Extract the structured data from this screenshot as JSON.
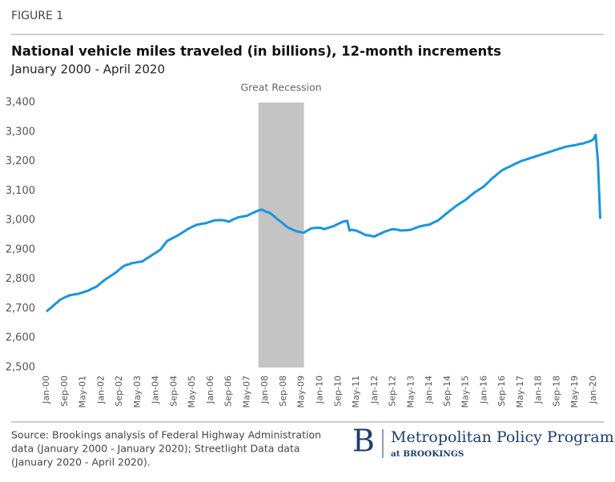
{
  "figure_label": "FIGURE 1",
  "source": [
    "Source: Brookings analysis of Federal Highway Administration",
    "data (January 2000 - January 2020); Streetlight Data data",
    "(January 2020 - April 2020)."
  ],
  "logo": {
    "letter": "B",
    "name": "Metropolitan Policy Program",
    "sub": "at BROOKINGS"
  },
  "chart_data": {
    "type": "line",
    "title": "National vehicle miles traveled (in billions), 12-month increments",
    "subtitle": "January 2000 - April 2020",
    "color": "#1b95dc",
    "annotations": [
      {
        "text": "Great Recession",
        "x_start": 93,
        "x_end": 113,
        "color": "#c4c4c4"
      }
    ],
    "ylim": [
      2500,
      3400
    ],
    "yticks": [
      {
        "value": 2500,
        "label": "2,500"
      },
      {
        "value": 2600,
        "label": "2,600"
      },
      {
        "value": 2700,
        "label": "2,700"
      },
      {
        "value": 2800,
        "label": "2,800"
      },
      {
        "value": 2900,
        "label": "2,900"
      },
      {
        "value": 3000,
        "label": "3,000"
      },
      {
        "value": 3100,
        "label": "3,100"
      },
      {
        "value": 3200,
        "label": "3,200"
      },
      {
        "value": 3300,
        "label": "3,300"
      },
      {
        "value": 3400,
        "label": "3,400"
      }
    ],
    "categories": [
      "Jan-00",
      null,
      null,
      null,
      null,
      null,
      null,
      null,
      "Sep-00",
      null,
      null,
      null,
      null,
      null,
      null,
      null,
      "May-01",
      null,
      null,
      null,
      null,
      null,
      null,
      null,
      "Jan-02",
      null,
      null,
      null,
      null,
      null,
      null,
      null,
      "Sep-02",
      null,
      null,
      null,
      null,
      null,
      null,
      null,
      "May-03",
      null,
      null,
      null,
      null,
      null,
      null,
      null,
      "Jan-04",
      null,
      null,
      null,
      null,
      null,
      null,
      null,
      "Sep-04",
      null,
      null,
      null,
      null,
      null,
      null,
      null,
      "May-05",
      null,
      null,
      null,
      null,
      null,
      null,
      null,
      "Jan-06",
      null,
      null,
      null,
      null,
      null,
      null,
      null,
      "Sep-06",
      null,
      null,
      null,
      null,
      null,
      null,
      null,
      "May-07",
      null,
      null,
      null,
      null,
      null,
      null,
      null,
      "Jan-08",
      null,
      null,
      null,
      null,
      null,
      null,
      null,
      "Sep-08",
      null,
      null,
      null,
      null,
      null,
      null,
      null,
      "May-09",
      null,
      null,
      null,
      null,
      null,
      null,
      null,
      "Jan-10",
      null,
      null,
      null,
      null,
      null,
      null,
      null,
      "Sep-10",
      null,
      null,
      null,
      null,
      null,
      null,
      null,
      "May-11",
      null,
      null,
      null,
      null,
      null,
      null,
      null,
      "Jan-12",
      null,
      null,
      null,
      null,
      null,
      null,
      null,
      "Sep-12",
      null,
      null,
      null,
      null,
      null,
      null,
      null,
      "May-13",
      null,
      null,
      null,
      null,
      null,
      null,
      null,
      "Jan-14",
      null,
      null,
      null,
      null,
      null,
      null,
      null,
      "Sep-14",
      null,
      null,
      null,
      null,
      null,
      null,
      null,
      "May-15",
      null,
      null,
      null,
      null,
      null,
      null,
      null,
      "Jan-16",
      null,
      null,
      null,
      null,
      null,
      null,
      null,
      "Sep-16",
      null,
      null,
      null,
      null,
      null,
      null,
      null,
      "May-17",
      null,
      null,
      null,
      null,
      null,
      null,
      null,
      "Jan-18",
      null,
      null,
      null,
      null,
      null,
      null,
      null,
      "Sep-18",
      null,
      null,
      null,
      null,
      null,
      null,
      null,
      "May-19",
      null,
      null,
      null,
      null,
      null,
      null,
      null,
      "Jan-20",
      null,
      null,
      null
    ],
    "values": [
      2690,
      2697,
      2703,
      2710,
      2717,
      2723,
      2730,
      2734,
      2738,
      2741,
      2745,
      2746,
      2748,
      2749,
      2750,
      2753,
      2755,
      2758,
      2760,
      2764,
      2768,
      2771,
      2775,
      2781,
      2788,
      2794,
      2800,
      2805,
      2810,
      2815,
      2820,
      2826,
      2833,
      2839,
      2845,
      2848,
      2850,
      2853,
      2855,
      2856,
      2858,
      2859,
      2860,
      2865,
      2870,
      2875,
      2880,
      2885,
      2890,
      2895,
      2900,
      2910,
      2920,
      2930,
      2934,
      2938,
      2942,
      2946,
      2950,
      2955,
      2960,
      2965,
      2970,
      2974,
      2978,
      2981,
      2985,
      2986,
      2988,
      2989,
      2990,
      2993,
      2995,
      2998,
      3000,
      3000,
      3001,
      3000,
      3000,
      2997,
      2995,
      2999,
      3003,
      3006,
      3010,
      3011,
      3013,
      3014,
      3015,
      3019,
      3023,
      3026,
      3030,
      3033,
      3036,
      3035,
      3030,
      3028,
      3025,
      3019,
      3013,
      3006,
      3000,
      2994,
      2988,
      2981,
      2975,
      2972,
      2968,
      2965,
      2962,
      2961,
      2959,
      2958,
      2963,
      2967,
      2972,
      2973,
      2974,
      2974,
      2975,
      2972,
      2970,
      2973,
      2975,
      2978,
      2980,
      2984,
      2988,
      2991,
      2995,
      2997,
      2998,
      2965,
      2968,
      2966,
      2965,
      2961,
      2958,
      2954,
      2950,
      2949,
      2948,
      2946,
      2945,
      2949,
      2953,
      2956,
      2960,
      2963,
      2965,
      2968,
      2970,
      2969,
      2968,
      2966,
      2965,
      2966,
      2966,
      2967,
      2968,
      2971,
      2974,
      2977,
      2980,
      2981,
      2983,
      2984,
      2985,
      2989,
      2993,
      2996,
      3000,
      3007,
      3013,
      3020,
      3026,
      3032,
      3038,
      3044,
      3050,
      3055,
      3060,
      3065,
      3070,
      3076,
      3083,
      3089,
      3095,
      3100,
      3105,
      3110,
      3115,
      3123,
      3130,
      3138,
      3145,
      3151,
      3158,
      3164,
      3170,
      3174,
      3178,
      3181,
      3185,
      3189,
      3193,
      3196,
      3200,
      3203,
      3205,
      3208,
      3210,
      3213,
      3215,
      3218,
      3220,
      3223,
      3225,
      3228,
      3230,
      3233,
      3235,
      3238,
      3240,
      3243,
      3245,
      3248,
      3250,
      3251,
      3253,
      3254,
      3255,
      3257,
      3259,
      3260,
      3262,
      3265,
      3267,
      3270,
      3275,
      3290,
      3200,
      3005
    ]
  }
}
